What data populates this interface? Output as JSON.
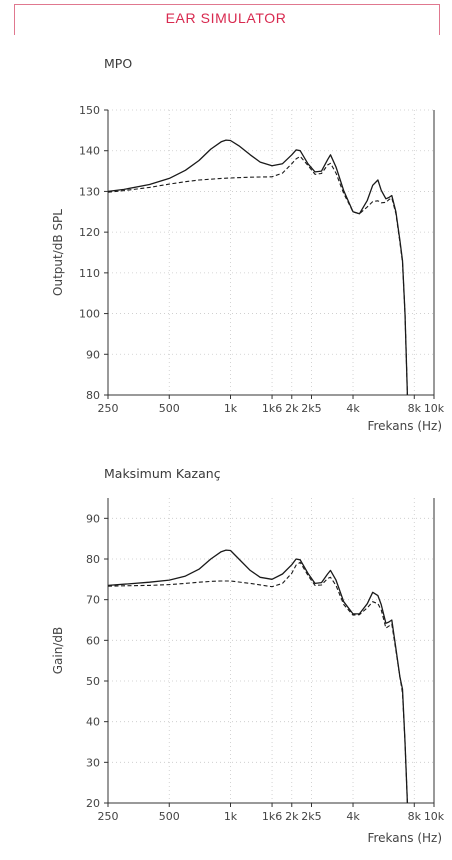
{
  "header": {
    "title": "EAR SIMULATOR"
  },
  "chart_data": [
    {
      "type": "line",
      "title": "MPO",
      "xlabel": "Frekans (Hz)",
      "ylabel": "Output/dB SPL",
      "x_scale": "log",
      "xlim": [
        250,
        10000
      ],
      "ylim": [
        80,
        150
      ],
      "x_ticks": [
        250,
        500,
        1000,
        1600,
        2000,
        2500,
        4000,
        8000,
        10000
      ],
      "x_tick_labels": [
        "250",
        "500",
        "1k",
        "1k6",
        "2k",
        "2k5",
        "4k",
        "8k",
        "10k"
      ],
      "y_ticks": [
        80,
        90,
        100,
        110,
        120,
        130,
        140,
        150
      ],
      "y_tick_labels": [
        "80",
        "90",
        "100",
        "110",
        "120",
        "130",
        "140",
        "150"
      ],
      "grid": "dotted",
      "series": [
        {
          "style": "solid",
          "x": [
            250,
            300,
            400,
            500,
            600,
            700,
            800,
            900,
            950,
            1000,
            1100,
            1250,
            1400,
            1600,
            1800,
            2000,
            2100,
            2200,
            2400,
            2600,
            2800,
            3000,
            3100,
            3300,
            3600,
            4000,
            4300,
            4700,
            5000,
            5300,
            5500,
            5800,
            6000,
            6200,
            6500,
            6800,
            7000,
            7200,
            7400
          ],
          "values": [
            130,
            130.5,
            131.7,
            133.2,
            135.2,
            137.6,
            140.4,
            142.2,
            142.6,
            142.5,
            141.2,
            139,
            137.2,
            136.3,
            136.8,
            139,
            140.2,
            140,
            136.8,
            134.8,
            135,
            137.8,
            139,
            136,
            130.2,
            125,
            124.5,
            127.8,
            131.5,
            132.8,
            130.3,
            128.2,
            128.5,
            129,
            125,
            118,
            113,
            100,
            80
          ]
        },
        {
          "style": "dashed",
          "x": [
            250,
            300,
            400,
            500,
            600,
            700,
            800,
            900,
            1000,
            1250,
            1600,
            1800,
            2000,
            2100,
            2200,
            2400,
            2600,
            2800,
            3000,
            3100,
            3300,
            3600,
            4000,
            4300,
            4700,
            5000,
            5300,
            5500,
            5800,
            6000,
            6200,
            6500,
            6800,
            7000,
            7200,
            7400
          ],
          "values": [
            129.8,
            130.2,
            131,
            131.8,
            132.4,
            132.8,
            133,
            133.2,
            133.3,
            133.5,
            133.6,
            134.5,
            136.8,
            138,
            138.6,
            136.4,
            134.2,
            134.4,
            136.5,
            136.9,
            134.5,
            129.5,
            125,
            124.5,
            126.2,
            127.5,
            127.7,
            127.2,
            127.3,
            128,
            128.4,
            124.5,
            117.5,
            112.5,
            100,
            80
          ]
        }
      ]
    },
    {
      "type": "line",
      "title": "Maksimum Kazanç",
      "xlabel": "Frekans (Hz)",
      "ylabel": "Gain/dB",
      "x_scale": "log",
      "xlim": [
        250,
        10000
      ],
      "ylim": [
        20,
        95
      ],
      "x_ticks": [
        250,
        500,
        1000,
        1600,
        2000,
        2500,
        4000,
        8000,
        10000
      ],
      "x_tick_labels": [
        "250",
        "500",
        "1k",
        "1k6",
        "2k",
        "2k5",
        "4k",
        "8k",
        "10k"
      ],
      "y_ticks": [
        20,
        30,
        40,
        50,
        60,
        70,
        80,
        90
      ],
      "y_tick_labels": [
        "20",
        "30",
        "40",
        "50",
        "60",
        "70",
        "80",
        "90"
      ],
      "grid": "dotted",
      "series": [
        {
          "style": "solid",
          "x": [
            250,
            300,
            400,
            500,
            600,
            700,
            800,
            900,
            950,
            1000,
            1100,
            1250,
            1400,
            1600,
            1800,
            2000,
            2100,
            2200,
            2400,
            2600,
            2800,
            3000,
            3100,
            3300,
            3600,
            4000,
            4300,
            4700,
            5000,
            5300,
            5500,
            5800,
            6000,
            6200,
            6500,
            6800,
            7000,
            7200,
            7400
          ],
          "values": [
            73.5,
            73.8,
            74.3,
            74.8,
            75.8,
            77.5,
            80,
            81.8,
            82.2,
            82.1,
            80,
            77.2,
            75.5,
            75,
            76.3,
            78.6,
            80,
            79.8,
            76.5,
            74,
            74.2,
            76.3,
            77.2,
            74.8,
            69.5,
            66.5,
            66.5,
            69,
            71.8,
            71,
            68.8,
            64.2,
            64.5,
            65,
            58,
            51,
            48,
            35,
            20
          ]
        },
        {
          "style": "dashed",
          "x": [
            250,
            300,
            400,
            500,
            600,
            700,
            800,
            900,
            1000,
            1250,
            1600,
            1800,
            2000,
            2100,
            2200,
            2400,
            2600,
            2800,
            3000,
            3100,
            3300,
            3600,
            4000,
            4300,
            4700,
            5000,
            5300,
            5500,
            5800,
            6000,
            6200,
            6500,
            6800,
            7000,
            7200,
            7400
          ],
          "values": [
            73.3,
            73.4,
            73.5,
            73.7,
            74,
            74.3,
            74.5,
            74.6,
            74.6,
            74,
            73.2,
            74,
            76.5,
            78.5,
            79.2,
            76,
            73.5,
            73.6,
            75.2,
            75.5,
            73.5,
            68.8,
            66.2,
            66.3,
            68,
            69.5,
            69,
            67.5,
            63,
            63.5,
            64,
            57.5,
            51,
            47,
            35,
            20
          ]
        }
      ]
    }
  ]
}
